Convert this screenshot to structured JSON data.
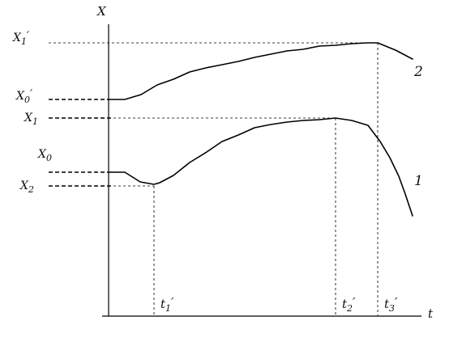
{
  "chart_data": {
    "type": "line",
    "title": "",
    "xlabel": "t",
    "ylabel": "X",
    "grid": false,
    "legend": "none",
    "series": [
      {
        "name": "1",
        "points": [
          [
            136,
            213
          ],
          [
            154,
            213
          ],
          [
            173,
            225
          ],
          [
            190,
            228
          ],
          [
            197,
            226
          ],
          [
            214,
            217
          ],
          [
            234,
            201
          ],
          [
            255,
            188
          ],
          [
            274,
            175
          ],
          [
            294,
            167
          ],
          [
            314,
            158
          ],
          [
            334,
            154
          ],
          [
            354,
            151
          ],
          [
            374,
            149
          ],
          [
            394,
            148
          ],
          [
            414,
            146
          ],
          [
            434,
            149
          ],
          [
            454,
            155
          ],
          [
            469,
            175
          ],
          [
            481,
            195
          ],
          [
            492,
            218
          ],
          [
            500,
            240
          ],
          [
            509,
            267
          ]
        ]
      },
      {
        "name": "2",
        "points": [
          [
            136,
            123
          ],
          [
            154,
            123
          ],
          [
            174,
            117
          ],
          [
            194,
            105
          ],
          [
            214,
            98
          ],
          [
            234,
            89
          ],
          [
            254,
            84
          ],
          [
            274,
            80
          ],
          [
            294,
            76
          ],
          [
            314,
            71
          ],
          [
            334,
            67
          ],
          [
            354,
            63
          ],
          [
            374,
            61
          ],
          [
            394,
            57
          ],
          [
            414,
            56
          ],
          [
            434,
            54
          ],
          [
            454,
            53
          ],
          [
            466,
            53
          ],
          [
            488,
            62
          ],
          [
            509,
            73
          ]
        ]
      }
    ],
    "y_markers": [
      {
        "text": "X₁′",
        "y": 53,
        "x_end": 466,
        "style": "thin"
      },
      {
        "text": "X₀′",
        "y": 123,
        "x_end": 136,
        "style": "thick"
      },
      {
        "text": "X₁",
        "y": 146,
        "x_end": 414,
        "style": "thick"
      },
      {
        "text": "X₀",
        "y": 213,
        "x_end": 136,
        "style": "thick"
      },
      {
        "text": "X₂",
        "y": 230,
        "x_end": 190,
        "style": "thick"
      }
    ],
    "x_markers": [
      {
        "text": "t₁′",
        "x": 190
      },
      {
        "text": "t₂′",
        "x": 414
      },
      {
        "text": "t₃′",
        "x": 466
      }
    ]
  },
  "labels": {
    "y_axis": "X",
    "x_axis": "t",
    "curve1": "1",
    "curve2": "2",
    "y": {
      "x1p_main": "X",
      "x1p_sub": "1",
      "x1p_prime": "′",
      "x0p_main": "X",
      "x0p_sub": "0",
      "x0p_prime": "′",
      "x1_main": "X",
      "x1_sub": "1",
      "x0_main": "X",
      "x0_sub": "0",
      "x2_main": "X",
      "x2_sub": "2"
    },
    "t": {
      "t1_main": "t",
      "t1_sub": "1",
      "t1_prime": "′",
      "t2_main": "t",
      "t2_sub": "2",
      "t2_prime": "′",
      "t3_main": "t",
      "t3_sub": "3",
      "t3_prime": "′"
    }
  }
}
